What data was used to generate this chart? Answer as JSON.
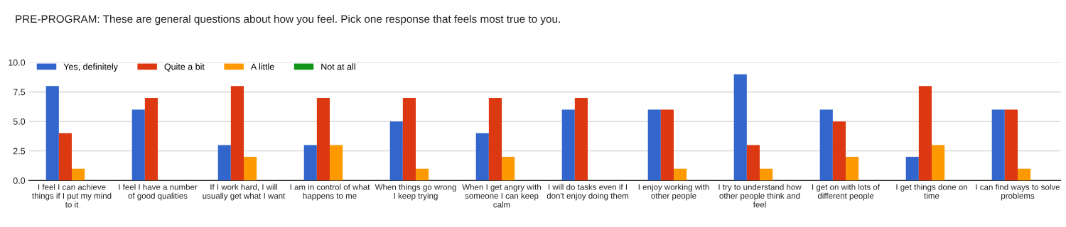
{
  "chart_data": {
    "type": "bar",
    "title": "PRE-PROGRAM: These are general questions about how you feel. Pick one response that feels most true to you.",
    "categories": [
      "I feel I can achieve\nthings if I put my mind\nto it",
      "I feel I have a number\nof good qualities",
      "If I work hard, I will\nusually get what I want",
      "I am in control of what\nhappens to me",
      "When things go wrong\nI keep trying",
      "When I get angry with\nsomeone I can keep\ncalm",
      "I will do tasks even if I\ndon't enjoy doing them",
      "I enjoy working with\nother people",
      "I try to understand how\nother people think and\nfeel",
      "I get on with lots of\ndifferent people",
      "I get things done on\ntime",
      "I can find ways to solve\nproblems"
    ],
    "series": [
      {
        "name": "Yes, definitely",
        "color": "#3366cc",
        "values": [
          8,
          6,
          3,
          3,
          5,
          4,
          6,
          6,
          9,
          6,
          2,
          6
        ]
      },
      {
        "name": "Quite a bit",
        "color": "#dc3912",
        "values": [
          4,
          7,
          8,
          7,
          7,
          7,
          7,
          6,
          3,
          5,
          8,
          6
        ]
      },
      {
        "name": "A little",
        "color": "#ff9900",
        "values": [
          1,
          0,
          2,
          3,
          1,
          2,
          0,
          1,
          1,
          2,
          3,
          1
        ]
      },
      {
        "name": "Not at all",
        "color": "#109618",
        "values": [
          0,
          0,
          0,
          0,
          0,
          0,
          0,
          0,
          0,
          0,
          0,
          0
        ]
      }
    ],
    "ylim": [
      0,
      10
    ],
    "yticks": [
      {
        "value": 0,
        "label": "0.0"
      },
      {
        "value": 2.5,
        "label": "2.5"
      },
      {
        "value": 5,
        "label": "5.0"
      },
      {
        "value": 7.5,
        "label": "7.5"
      },
      {
        "value": 10,
        "label": "10.0"
      }
    ],
    "grid": "y",
    "legend": "top left"
  }
}
